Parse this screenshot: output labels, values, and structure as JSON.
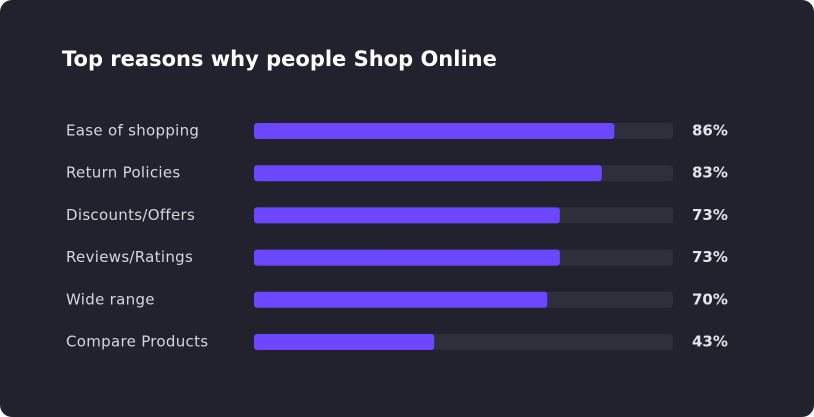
{
  "chart_data": {
    "type": "bar",
    "orientation": "horizontal",
    "title": "Top reasons why people Shop Online",
    "categories": [
      "Ease of shopping",
      "Return Policies",
      "Discounts/Offers",
      "Reviews/Ratings",
      "Wide range",
      "Compare Products"
    ],
    "values": [
      86,
      83,
      73,
      73,
      70,
      43
    ],
    "value_labels": [
      "86%",
      "83%",
      "73%",
      "73%",
      "70%",
      "43%"
    ],
    "color": "#6c47ff",
    "xlim": [
      0,
      100
    ]
  }
}
